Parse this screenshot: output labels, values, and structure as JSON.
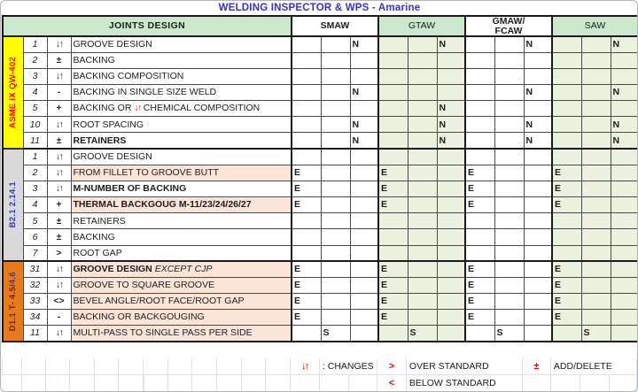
{
  "window": {
    "title": "WELDING INSPECTOR & WPS - Amarine"
  },
  "header": {
    "joints_label": "JOINTS DESIGN",
    "processes": [
      {
        "label": "SMAW",
        "lines": [
          "SMAW"
        ],
        "style": "plain"
      },
      {
        "label": "GTAW",
        "lines": [
          "GTAW"
        ],
        "style": "green"
      },
      {
        "label": "GMAW/FCAW",
        "lines": [
          "GMAW/",
          "FCAW"
        ],
        "style": "plain"
      },
      {
        "label": "SAW",
        "lines": [
          "SAW"
        ],
        "style": "green"
      }
    ]
  },
  "groups": [
    {
      "code": "ASME IX QW-402",
      "label_parts": [
        {
          "t": "ASME IX QW-402",
          "c": "#FF0000"
        }
      ],
      "label_bg": "#FFFF00",
      "rows": [
        {
          "num": "1",
          "sym": "↓↑",
          "desc": [
            {
              "t": "GROOVE DESIGN"
            }
          ],
          "bg": "",
          "marks": "..N..N..N..N"
        },
        {
          "num": "2",
          "sym": "±",
          "desc": [
            {
              "t": "BACKING"
            }
          ],
          "bg": "",
          "marks": "............"
        },
        {
          "num": "3",
          "sym": "↓↑",
          "desc": [
            {
              "t": "BACKING COMPOSITION"
            }
          ],
          "bg": "",
          "marks": "............"
        },
        {
          "num": "4",
          "sym": "-",
          "desc": [
            {
              "t": "BACKING IN SINGLE SIZE WELD"
            }
          ],
          "bg": "",
          "marks": "..N.....N..N"
        },
        {
          "num": "5",
          "sym": "+",
          "desc": [
            {
              "t": "BACKING OR "
            },
            {
              "t": "↓↑",
              "r": 1
            },
            {
              "t": " CHEMICAL COMPOSITION"
            }
          ],
          "bg": "",
          "marks": ".....N......"
        },
        {
          "num": "10",
          "sym": "↓↑",
          "desc": [
            {
              "t": "ROOT SPACING"
            }
          ],
          "bg": "",
          "marks": "..N..N..N..N"
        },
        {
          "num": "11",
          "sym": "±",
          "desc": [
            {
              "t": "RETAINERS",
              "b": 1
            }
          ],
          "bg": "",
          "marks": "..N..N..N..N"
        }
      ]
    },
    {
      "code": "B2.1 2.14.1",
      "label_parts": [
        {
          "t": "B2.1 2.14.1",
          "c": "#3333CC"
        }
      ],
      "label_bg": "#D9D9D9",
      "rows": [
        {
          "num": "1",
          "sym": "↓↑",
          "desc": [
            {
              "t": "GROOVE DESIGN"
            }
          ],
          "bg": "",
          "marks": "............"
        },
        {
          "num": "2",
          "sym": "↓↑",
          "desc": [
            {
              "t": "FROM FILLET TO GROOVE BUTT"
            }
          ],
          "bg": "peach",
          "marks": "E..E..E..E.."
        },
        {
          "num": "3",
          "sym": "↓↑",
          "desc": [
            {
              "t": "M-NUMBER OF BACKING",
              "b": 1
            }
          ],
          "bg": "",
          "marks": "E..E..E..E.."
        },
        {
          "num": "4",
          "sym": "+",
          "desc": [
            {
              "t": "THERMAL BACKGOUG M-11/23/24/26/27",
              "b": 1
            }
          ],
          "bg": "peach",
          "marks": "E..E..E..E.."
        },
        {
          "num": "5",
          "sym": "±",
          "desc": [
            {
              "t": "RETAINERS"
            }
          ],
          "bg": "",
          "marks": "............"
        },
        {
          "num": "6",
          "sym": "±",
          "desc": [
            {
              "t": "BACKING"
            }
          ],
          "bg": "",
          "marks": "............"
        },
        {
          "num": "7",
          "sym": ">",
          "desc": [
            {
              "t": "ROOT GAP"
            }
          ],
          "bg": "",
          "marks": "............"
        }
      ]
    },
    {
      "code": "D1.1 T- 4.5/4.6",
      "label_parts": [
        {
          "t": "D1.1 T- 4.5/",
          "c": "#6E2400"
        },
        {
          "t": "4.6",
          "c": "#3333CC"
        }
      ],
      "label_bg": "#E97A1A",
      "rows": [
        {
          "num": "31",
          "sym": "↓↑",
          "desc": [
            {
              "t": "GROOVE DESIGN ",
              "b": 1
            },
            {
              "t": "EXCEPT CJP",
              "i": 1
            }
          ],
          "bg": "peach",
          "marks": "E..E..E..E.."
        },
        {
          "num": "32",
          "sym": "↓↑",
          "desc": [
            {
              "t": "GROOVE TO SQUARE GROOVE"
            }
          ],
          "bg": "peach",
          "marks": "E..E..E..E.."
        },
        {
          "num": "33",
          "sym": "<>",
          "desc": [
            {
              "t": "BEVEL ANGLE/ROOT FACE/ROOT GAP"
            }
          ],
          "bg": "peach",
          "marks": "E..E..E..E.."
        },
        {
          "num": "34",
          "sym": "-",
          "desc": [
            {
              "t": "BACKING OR BACKGOUGING"
            }
          ],
          "bg": "peach",
          "marks": "E..E..E..E.."
        },
        {
          "num": "11",
          "sym": "↓↑",
          "desc": [
            {
              "t": "MULTI-PASS TO SINGLE PASS PER SIDE"
            }
          ],
          "bg": "peach",
          "marks": ".S..S..S..S."
        }
      ]
    }
  ],
  "legend": {
    "changes_sym": "↓↑",
    "changes_label": ": CHANGES",
    "over_sym": ">",
    "over_label": "OVER STANDARD",
    "add_sym": "±",
    "add_label": "ADD/DELETE",
    "below_sym": "<",
    "below_label": "BELOW STANDARD"
  },
  "colors": {
    "title_blue": "#3333CC",
    "symbol_red": "#FF0000",
    "letter_N_green": "#00B050",
    "letter_E_red": "#F2453D",
    "letter_S_blue": "#3333CC",
    "header_green_bg": "#CBE8CC",
    "header_green_text": "#21A366",
    "body_shade_green": "#EBF1DE",
    "highlight_peach": "#FCE4D6",
    "group1_label_bg": "#FFFF00",
    "group2_label_bg": "#D9D9D9",
    "group3_label_bg": "#E97A1A"
  }
}
